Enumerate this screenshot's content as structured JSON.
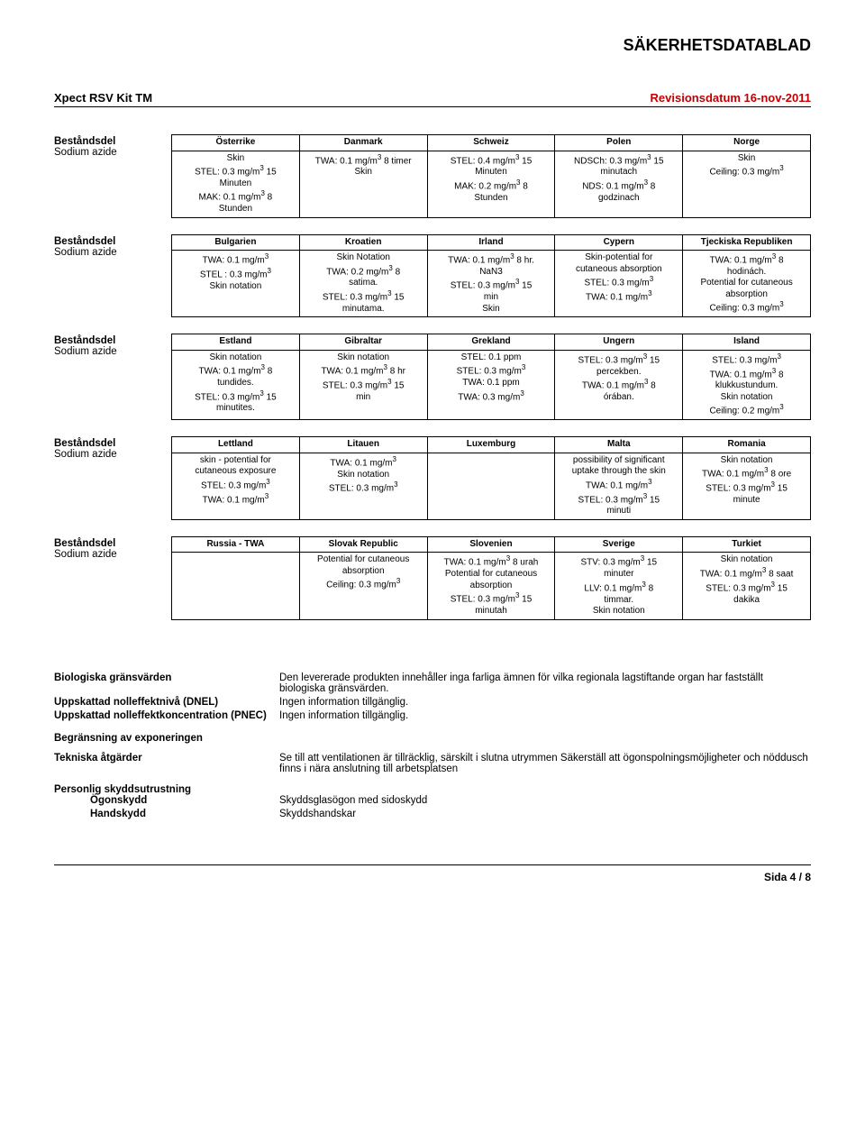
{
  "header": {
    "title": "SÄKERHETSDATABLAD"
  },
  "meta": {
    "product": "Xpect RSV Kit TM",
    "revision": "Revisionsdatum 16-nov-2011"
  },
  "tables": [
    {
      "rowHeader": "Beståndsdel",
      "rowSub": "Sodium azide",
      "columns": [
        "Österrike",
        "Danmark",
        "Schweiz",
        "Polen",
        "Norge"
      ],
      "cells": [
        "Skin\nSTEL: 0.3 mg/m³ 15\nMinuten\nMAK: 0.1 mg/m³ 8\nStunden",
        "TWA: 0.1 mg/m³ 8 timer\nSkin",
        "STEL: 0.4 mg/m³ 15\nMinuten\nMAK: 0.2 mg/m³ 8\nStunden",
        "NDSCh: 0.3 mg/m³ 15\nminutach\nNDS: 0.1 mg/m³ 8\ngodzinach",
        "Skin\nCeiling: 0.3 mg/m³"
      ]
    },
    {
      "rowHeader": "Beståndsdel",
      "rowSub": "Sodium azide",
      "columns": [
        "Bulgarien",
        "Kroatien",
        "Irland",
        "Cypern",
        "Tjeckiska Republiken"
      ],
      "cells": [
        "TWA: 0.1 mg/m³\nSTEL : 0.3 mg/m³\nSkin notation",
        "Skin Notation\nTWA: 0.2 mg/m³ 8\nsatima.\nSTEL: 0.3 mg/m³ 15\nminutama.",
        "TWA: 0.1 mg/m³ 8 hr.\nNaN3\nSTEL: 0.3 mg/m³ 15\nmin\nSkin",
        "Skin-potential for\ncutaneous absorption\nSTEL: 0.3 mg/m³\nTWA: 0.1 mg/m³",
        "TWA: 0.1 mg/m³ 8\nhodinách.\nPotential for cutaneous\nabsorption\nCeiling: 0.3 mg/m³"
      ]
    },
    {
      "rowHeader": "Beståndsdel",
      "rowSub": "Sodium azide",
      "columns": [
        "Estland",
        "Gibraltar",
        "Grekland",
        "Ungern",
        "Island"
      ],
      "cells": [
        "Skin notation\nTWA: 0.1 mg/m³ 8\ntundides.\nSTEL: 0.3 mg/m³ 15\nminutites.",
        "Skin notation\nTWA: 0.1 mg/m³ 8 hr\nSTEL: 0.3 mg/m³ 15\nmin",
        "STEL: 0.1 ppm\nSTEL: 0.3 mg/m³\nTWA: 0.1 ppm\nTWA: 0.3 mg/m³",
        "STEL: 0.3 mg/m³ 15\npercekben.\nTWA: 0.1 mg/m³ 8\nórában.",
        "STEL: 0.3 mg/m³\nTWA: 0.1 mg/m³ 8\nklukkustundum.\nSkin notation\nCeiling: 0.2 mg/m³"
      ]
    },
    {
      "rowHeader": "Beståndsdel",
      "rowSub": "Sodium azide",
      "columns": [
        "Lettland",
        "Litauen",
        "Luxemburg",
        "Malta",
        "Romania"
      ],
      "cells": [
        "skin - potential for\ncutaneous exposure\nSTEL: 0.3 mg/m³\nTWA: 0.1 mg/m³",
        "TWA: 0.1 mg/m³\nSkin notation\nSTEL: 0.3 mg/m³",
        "",
        "possibility of significant\nuptake through the skin\nTWA: 0.1 mg/m³\nSTEL: 0.3 mg/m³ 15\nminuti",
        "Skin notation\nTWA: 0.1 mg/m³ 8 ore\nSTEL: 0.3 mg/m³ 15\nminute"
      ]
    },
    {
      "rowHeader": "Beståndsdel",
      "rowSub": "Sodium azide",
      "columns": [
        "Russia - TWA",
        "Slovak Republic",
        "Slovenien",
        "Sverige",
        "Turkiet"
      ],
      "cells": [
        "",
        "Potential for cutaneous\nabsorption\nCeiling: 0.3 mg/m³",
        "TWA: 0.1 mg/m³ 8 urah\nPotential for cutaneous\nabsorption\nSTEL: 0.3 mg/m³ 15\nminutah",
        "STV: 0.3 mg/m³ 15\nminuter\nLLV: 0.1 mg/m³ 8\ntimmar.\nSkin notation",
        "Skin notation\nTWA: 0.1 mg/m³ 8 saat\nSTEL: 0.3 mg/m³ 15\ndakika"
      ]
    }
  ],
  "sections": {
    "bio": {
      "label": "Biologiska gränsvärden",
      "text": "Den levererade produkten innehåller inga farliga ämnen för vilka regionala lagstiftande organ har fastställt biologiska gränsvärden."
    },
    "dnel": {
      "label": "Uppskattad nolleffektnivå (DNEL)",
      "text": "Ingen information tillgänglig."
    },
    "pnec": {
      "label": "Uppskattad nolleffektkoncentration (PNEC)",
      "text": "Ingen information tillgänglig."
    },
    "expo": {
      "label": "Begränsning av exponeringen"
    },
    "tech": {
      "label": "Tekniska åtgärder",
      "text": "Se till att ventilationen är tillräcklig, särskilt i slutna utrymmen Säkerställ att ögonspolningsmöjligheter och nöddusch finns i nära anslutning till arbetsplatsen"
    },
    "ppe": {
      "label": "Personlig skyddsutrustning"
    },
    "eyes": {
      "label": "Ögonskydd",
      "text": "Skyddsglasögon med sidoskydd"
    },
    "hands": {
      "label": "Handskydd",
      "text": "Skyddshandskar"
    }
  },
  "footer": {
    "page": "Sida  4 / 8"
  }
}
